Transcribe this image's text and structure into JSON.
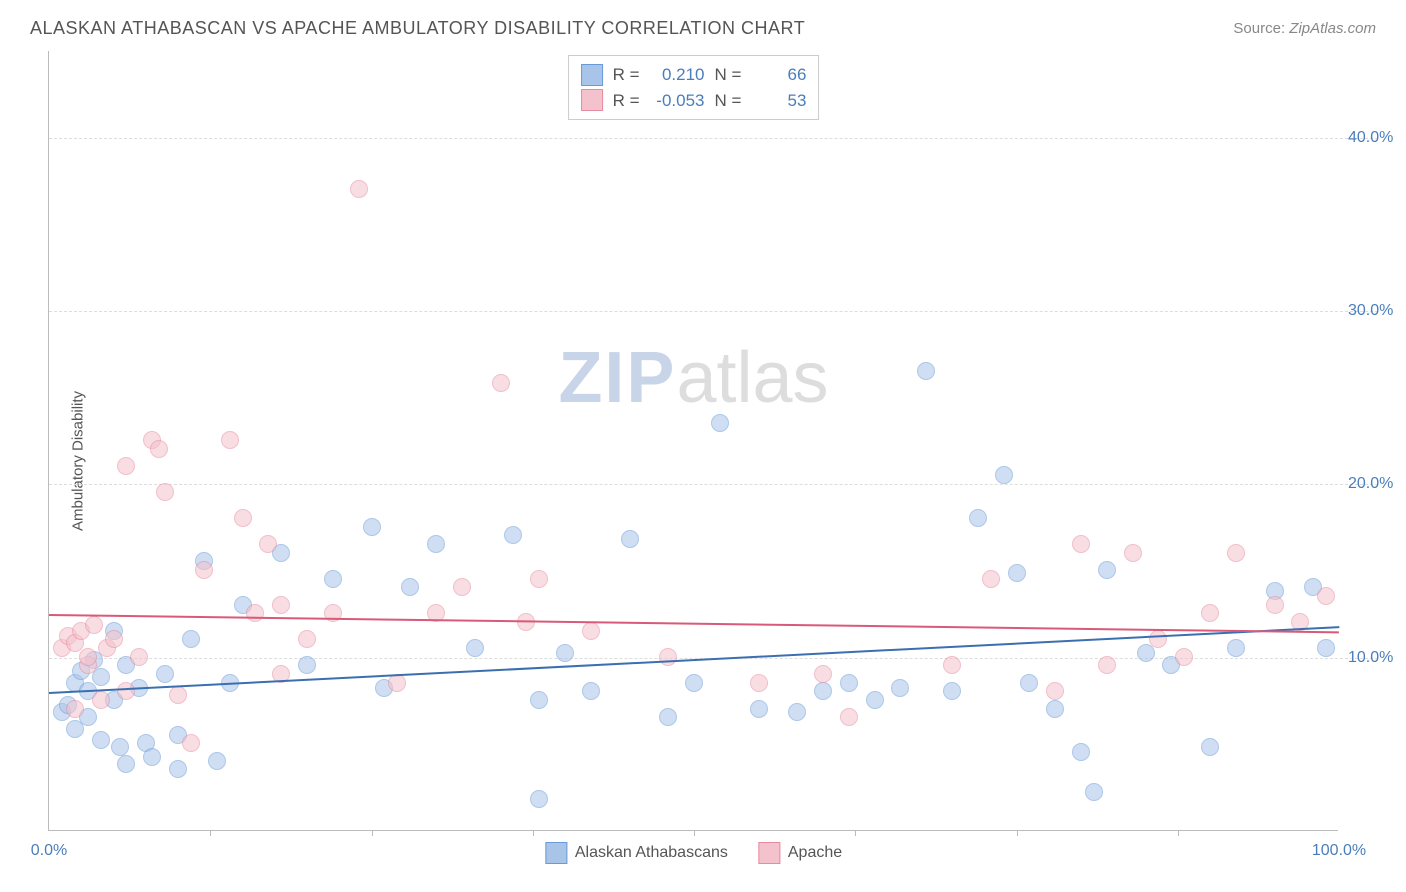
{
  "title": "ALASKAN ATHABASCAN VS APACHE AMBULATORY DISABILITY CORRELATION CHART",
  "source_label": "Source:",
  "source_value": "ZipAtlas.com",
  "ylabel": "Ambulatory Disability",
  "watermark": {
    "bold": "ZIP",
    "light": "atlas"
  },
  "chart": {
    "type": "scatter",
    "xlim": [
      0,
      100
    ],
    "ylim": [
      0,
      45
    ],
    "ytick_values": [
      10,
      20,
      30,
      40
    ],
    "ytick_labels": [
      "10.0%",
      "20.0%",
      "30.0%",
      "40.0%"
    ],
    "xtick_values": [
      0,
      100
    ],
    "xtick_labels": [
      "0.0%",
      "100.0%"
    ],
    "xtick_minor": [
      12.5,
      25,
      37.5,
      50,
      62.5,
      75,
      87.5
    ],
    "grid_color": "#dddddd",
    "axis_color": "#bbbbbb",
    "tick_label_color": "#4a7ebb",
    "background_color": "#ffffff",
    "point_radius": 9,
    "point_opacity": 0.55,
    "line_width": 2
  },
  "series": [
    {
      "name": "Alaskan Athabascans",
      "color_fill": "#a8c4e8",
      "color_stroke": "#6a9bd8",
      "line_color": "#3a6fb0",
      "R": "0.210",
      "N": "66",
      "trend": {
        "x1": 0,
        "y1": 8.0,
        "x2": 100,
        "y2": 11.8
      },
      "points": [
        [
          1,
          6.8
        ],
        [
          1.5,
          7.2
        ],
        [
          2,
          8.5
        ],
        [
          2,
          5.8
        ],
        [
          2.5,
          9.2
        ],
        [
          3,
          8.0
        ],
        [
          3,
          6.5
        ],
        [
          3.5,
          9.8
        ],
        [
          4,
          8.8
        ],
        [
          4,
          5.2
        ],
        [
          5,
          11.5
        ],
        [
          5,
          7.5
        ],
        [
          5.5,
          4.8
        ],
        [
          6,
          9.5
        ],
        [
          6,
          3.8
        ],
        [
          7,
          8.2
        ],
        [
          7.5,
          5.0
        ],
        [
          8,
          4.2
        ],
        [
          9,
          9.0
        ],
        [
          10,
          3.5
        ],
        [
          10,
          5.5
        ],
        [
          11,
          11.0
        ],
        [
          12,
          15.5
        ],
        [
          13,
          4.0
        ],
        [
          14,
          8.5
        ],
        [
          15,
          13.0
        ],
        [
          18,
          16.0
        ],
        [
          20,
          9.5
        ],
        [
          22,
          14.5
        ],
        [
          25,
          17.5
        ],
        [
          26,
          8.2
        ],
        [
          28,
          14.0
        ],
        [
          30,
          16.5
        ],
        [
          33,
          10.5
        ],
        [
          36,
          17.0
        ],
        [
          38,
          7.5
        ],
        [
          38,
          1.8
        ],
        [
          40,
          10.2
        ],
        [
          42,
          8.0
        ],
        [
          45,
          16.8
        ],
        [
          48,
          6.5
        ],
        [
          50,
          8.5
        ],
        [
          52,
          23.5
        ],
        [
          55,
          7.0
        ],
        [
          58,
          6.8
        ],
        [
          60,
          8.0
        ],
        [
          62,
          8.5
        ],
        [
          64,
          7.5
        ],
        [
          66,
          8.2
        ],
        [
          68,
          26.5
        ],
        [
          70,
          8.0
        ],
        [
          72,
          18.0
        ],
        [
          74,
          20.5
        ],
        [
          75,
          14.8
        ],
        [
          76,
          8.5
        ],
        [
          78,
          7.0
        ],
        [
          80,
          4.5
        ],
        [
          81,
          2.2
        ],
        [
          82,
          15.0
        ],
        [
          85,
          10.2
        ],
        [
          87,
          9.5
        ],
        [
          90,
          4.8
        ],
        [
          92,
          10.5
        ],
        [
          95,
          13.8
        ],
        [
          98,
          14.0
        ],
        [
          99,
          10.5
        ]
      ]
    },
    {
      "name": "Apache",
      "color_fill": "#f4c2cc",
      "color_stroke": "#e88ba0",
      "line_color": "#d85a78",
      "R": "-0.053",
      "N": "53",
      "trend": {
        "x1": 0,
        "y1": 12.5,
        "x2": 100,
        "y2": 11.5
      },
      "points": [
        [
          1,
          10.5
        ],
        [
          1.5,
          11.2
        ],
        [
          2,
          7.0
        ],
        [
          2,
          10.8
        ],
        [
          2.5,
          11.5
        ],
        [
          3,
          9.5
        ],
        [
          3,
          10.0
        ],
        [
          3.5,
          11.8
        ],
        [
          4,
          7.5
        ],
        [
          4.5,
          10.5
        ],
        [
          5,
          11.0
        ],
        [
          6,
          8.0
        ],
        [
          6,
          21.0
        ],
        [
          7,
          10.0
        ],
        [
          8,
          22.5
        ],
        [
          8.5,
          22.0
        ],
        [
          9,
          19.5
        ],
        [
          10,
          7.8
        ],
        [
          11,
          5.0
        ],
        [
          12,
          15.0
        ],
        [
          14,
          22.5
        ],
        [
          15,
          18.0
        ],
        [
          16,
          12.5
        ],
        [
          17,
          16.5
        ],
        [
          18,
          13.0
        ],
        [
          18,
          9.0
        ],
        [
          20,
          11.0
        ],
        [
          22,
          12.5
        ],
        [
          24,
          37.0
        ],
        [
          27,
          8.5
        ],
        [
          30,
          12.5
        ],
        [
          32,
          14.0
        ],
        [
          35,
          25.8
        ],
        [
          37,
          12.0
        ],
        [
          38,
          14.5
        ],
        [
          42,
          11.5
        ],
        [
          48,
          10.0
        ],
        [
          55,
          8.5
        ],
        [
          60,
          9.0
        ],
        [
          62,
          6.5
        ],
        [
          70,
          9.5
        ],
        [
          73,
          14.5
        ],
        [
          78,
          8.0
        ],
        [
          80,
          16.5
        ],
        [
          82,
          9.5
        ],
        [
          84,
          16.0
        ],
        [
          86,
          11.0
        ],
        [
          88,
          10.0
        ],
        [
          90,
          12.5
        ],
        [
          92,
          16.0
        ],
        [
          95,
          13.0
        ],
        [
          97,
          12.0
        ],
        [
          99,
          13.5
        ]
      ]
    }
  ],
  "stats_box": {
    "rows": [
      {
        "swatch_fill": "#a8c4e8",
        "swatch_stroke": "#6a9bd8",
        "r_label": "R =",
        "r_val": "0.210",
        "n_label": "N =",
        "n_val": "66"
      },
      {
        "swatch_fill": "#f4c2cc",
        "swatch_stroke": "#e88ba0",
        "r_label": "R =",
        "r_val": "-0.053",
        "n_label": "N =",
        "n_val": "53"
      }
    ]
  },
  "legend": [
    {
      "label": "Alaskan Athabascans",
      "fill": "#a8c4e8",
      "stroke": "#6a9bd8"
    },
    {
      "label": "Apache",
      "fill": "#f4c2cc",
      "stroke": "#e88ba0"
    }
  ]
}
